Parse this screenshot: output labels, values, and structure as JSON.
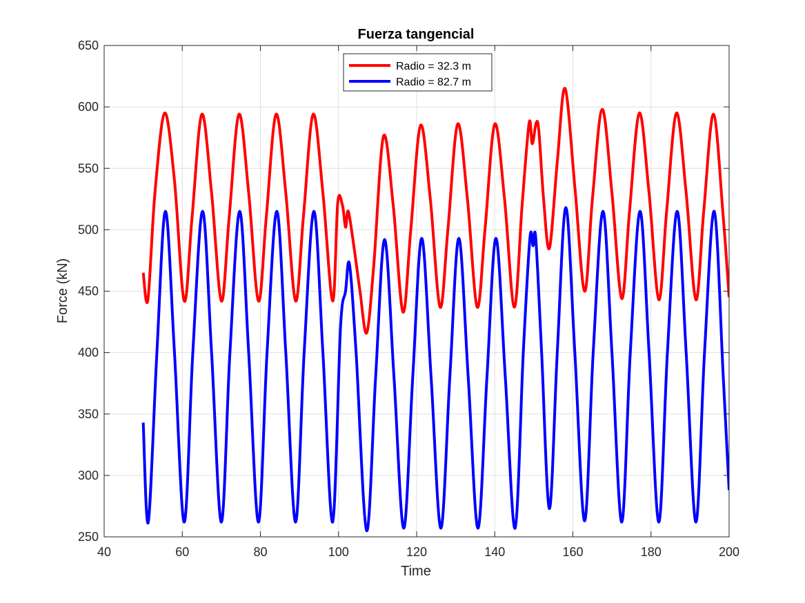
{
  "chart_data": {
    "type": "line",
    "title": "Fuerza tangencial",
    "xlabel": "Time",
    "ylabel": "Force (kN)",
    "xlim": [
      40,
      200
    ],
    "ylim": [
      250,
      650
    ],
    "xticks": [
      40,
      60,
      80,
      100,
      120,
      140,
      160,
      180,
      200
    ],
    "yticks": [
      250,
      300,
      350,
      400,
      450,
      500,
      550,
      600,
      650
    ],
    "grid": true,
    "legend_position": "top-center",
    "series": [
      {
        "name": "Radio = 32.3 m",
        "color": "#ff0000",
        "points": [
          [
            50.0,
            465
          ],
          [
            51.2,
            443
          ],
          [
            53.0,
            530
          ],
          [
            55.5,
            595
          ],
          [
            58.0,
            540
          ],
          [
            60.5,
            442
          ],
          [
            62.5,
            510
          ],
          [
            65.0,
            594
          ],
          [
            67.5,
            530
          ],
          [
            70.0,
            442
          ],
          [
            72.0,
            510
          ],
          [
            74.5,
            594
          ],
          [
            77.0,
            530
          ],
          [
            79.5,
            442
          ],
          [
            81.5,
            510
          ],
          [
            84.0,
            594
          ],
          [
            86.5,
            530
          ],
          [
            89.0,
            442
          ],
          [
            91.0,
            510
          ],
          [
            93.5,
            594
          ],
          [
            96.0,
            530
          ],
          [
            98.5,
            442
          ],
          [
            99.8,
            522
          ],
          [
            101.0,
            520
          ],
          [
            101.8,
            502
          ],
          [
            102.5,
            515
          ],
          [
            104.0,
            485
          ],
          [
            105.5,
            450
          ],
          [
            107.2,
            416
          ],
          [
            109.0,
            470
          ],
          [
            111.5,
            576
          ],
          [
            114.0,
            520
          ],
          [
            116.5,
            433
          ],
          [
            118.5,
            500
          ],
          [
            121.0,
            585
          ],
          [
            123.5,
            525
          ],
          [
            126.0,
            437
          ],
          [
            128.0,
            500
          ],
          [
            130.5,
            586
          ],
          [
            133.0,
            525
          ],
          [
            135.5,
            437
          ],
          [
            137.5,
            500
          ],
          [
            140.0,
            586
          ],
          [
            142.5,
            525
          ],
          [
            145.0,
            437
          ],
          [
            147.0,
            520
          ],
          [
            148.8,
            587
          ],
          [
            149.6,
            570
          ],
          [
            150.6,
            587
          ],
          [
            151.3,
            580
          ],
          [
            152.5,
            525
          ],
          [
            154.0,
            485
          ],
          [
            156.0,
            555
          ],
          [
            158.0,
            615
          ],
          [
            160.5,
            535
          ],
          [
            163.0,
            450
          ],
          [
            165.0,
            525
          ],
          [
            167.5,
            598
          ],
          [
            170.0,
            530
          ],
          [
            172.5,
            444
          ],
          [
            174.5,
            515
          ],
          [
            177.0,
            595
          ],
          [
            179.5,
            530
          ],
          [
            182.0,
            443
          ],
          [
            184.0,
            515
          ],
          [
            186.5,
            595
          ],
          [
            189.0,
            530
          ],
          [
            191.5,
            443
          ],
          [
            193.5,
            515
          ],
          [
            196.0,
            594
          ],
          [
            198.5,
            510
          ],
          [
            200.0,
            445
          ]
        ]
      },
      {
        "name": "Radio = 82.7 m",
        "color": "#0000ff",
        "points": [
          [
            50.0,
            343
          ],
          [
            51.3,
            262
          ],
          [
            53.5,
            400
          ],
          [
            55.7,
            515
          ],
          [
            58.0,
            400
          ],
          [
            60.5,
            262
          ],
          [
            62.7,
            400
          ],
          [
            65.2,
            515
          ],
          [
            67.5,
            400
          ],
          [
            70.0,
            262
          ],
          [
            72.2,
            400
          ],
          [
            74.7,
            515
          ],
          [
            77.0,
            400
          ],
          [
            79.5,
            262
          ],
          [
            81.7,
            400
          ],
          [
            84.2,
            515
          ],
          [
            86.5,
            400
          ],
          [
            89.0,
            262
          ],
          [
            91.2,
            400
          ],
          [
            93.7,
            515
          ],
          [
            96.0,
            400
          ],
          [
            98.5,
            262
          ],
          [
            100.5,
            420
          ],
          [
            101.8,
            450
          ],
          [
            102.8,
            472
          ],
          [
            104.5,
            400
          ],
          [
            107.2,
            255
          ],
          [
            109.5,
            380
          ],
          [
            111.8,
            492
          ],
          [
            114.2,
            380
          ],
          [
            116.7,
            257
          ],
          [
            119.0,
            380
          ],
          [
            121.3,
            493
          ],
          [
            123.7,
            380
          ],
          [
            126.2,
            257
          ],
          [
            128.5,
            380
          ],
          [
            130.8,
            493
          ],
          [
            133.2,
            380
          ],
          [
            135.7,
            257
          ],
          [
            138.0,
            380
          ],
          [
            140.3,
            493
          ],
          [
            142.7,
            380
          ],
          [
            145.2,
            257
          ],
          [
            147.3,
            400
          ],
          [
            149.0,
            493
          ],
          [
            149.8,
            487
          ],
          [
            150.5,
            493
          ],
          [
            152.0,
            400
          ],
          [
            154.0,
            273
          ],
          [
            156.0,
            400
          ],
          [
            158.2,
            518
          ],
          [
            160.5,
            400
          ],
          [
            163.0,
            263
          ],
          [
            165.2,
            400
          ],
          [
            167.7,
            515
          ],
          [
            170.0,
            400
          ],
          [
            172.5,
            262
          ],
          [
            174.7,
            400
          ],
          [
            177.2,
            515
          ],
          [
            179.5,
            400
          ],
          [
            182.0,
            262
          ],
          [
            184.2,
            400
          ],
          [
            186.7,
            515
          ],
          [
            189.0,
            400
          ],
          [
            191.5,
            262
          ],
          [
            193.7,
            400
          ],
          [
            196.2,
            515
          ],
          [
            198.5,
            380
          ],
          [
            200.0,
            288
          ]
        ]
      }
    ]
  }
}
